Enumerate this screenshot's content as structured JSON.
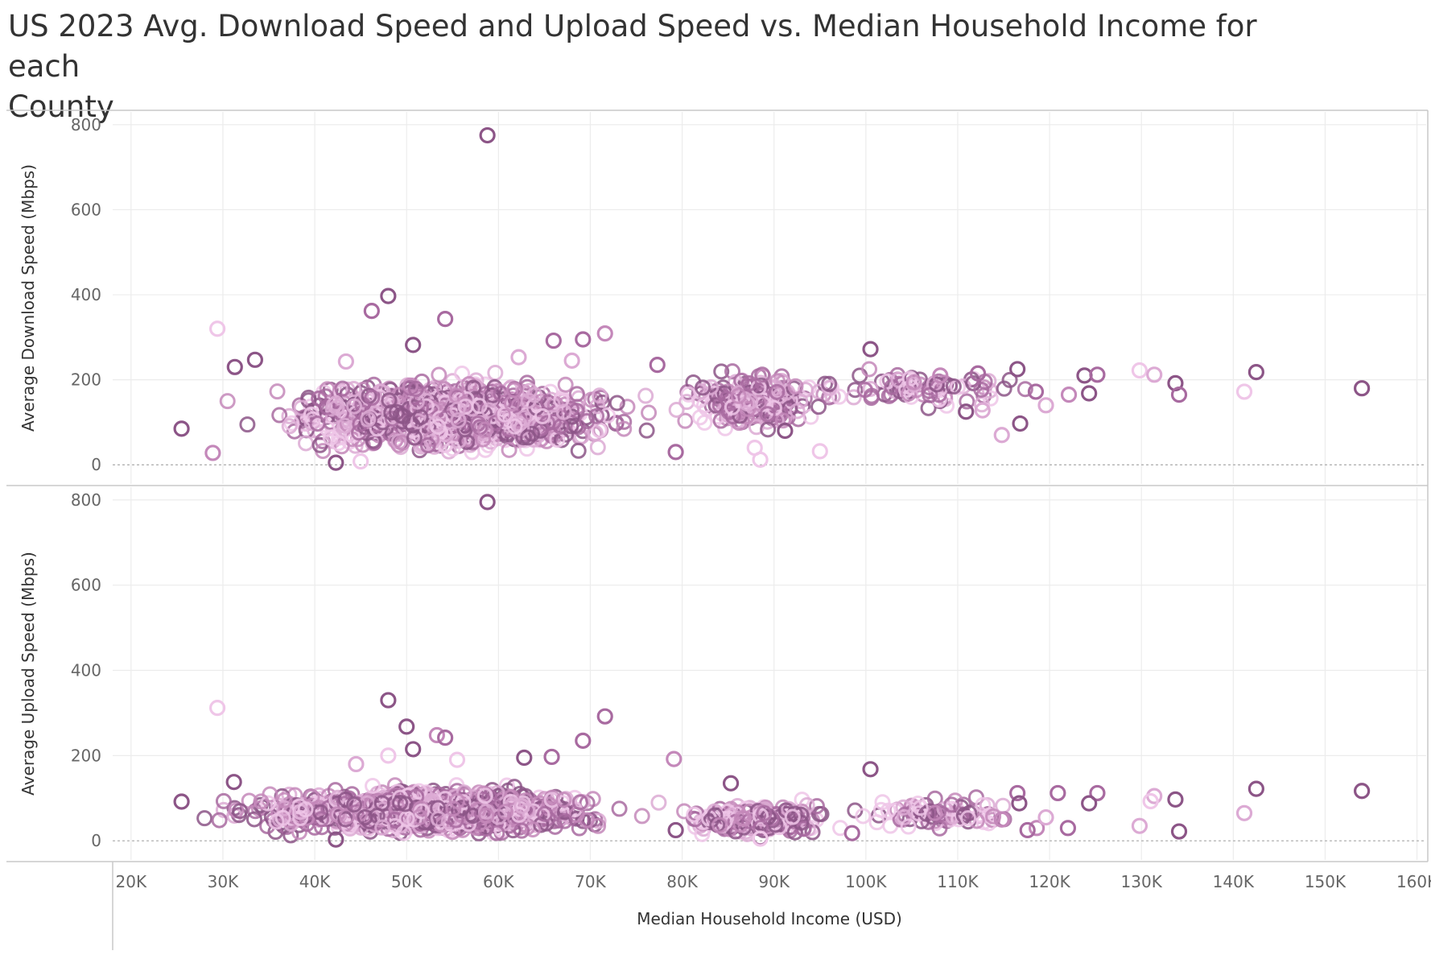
{
  "title_line1": "US 2023 Avg. Download Speed and Upload Speed vs. Median Household Income for each",
  "title_line2": "County",
  "chart_data": {
    "type": "scatter",
    "title": "US 2023 Avg. Download Speed and Upload Speed vs. Median Household Income for each County",
    "xlabel": "Median Household Income (USD)",
    "xlim": [
      18000,
      161000
    ],
    "x_ticks": [
      20000,
      30000,
      40000,
      50000,
      60000,
      70000,
      80000,
      90000,
      100000,
      110000,
      120000,
      130000,
      140000,
      150000,
      160000
    ],
    "x_tick_labels": [
      "20K",
      "30K",
      "40K",
      "50K",
      "60K",
      "70K",
      "80K",
      "90K",
      "100K",
      "110K",
      "120K",
      "130K",
      "140K",
      "150K",
      "160K"
    ],
    "marker": "hollow-circle",
    "grid": true,
    "colors": [
      "#8c5587",
      "#a86aa0",
      "#c488ba",
      "#dcaad4",
      "#efc6e8"
    ],
    "panels": [
      {
        "ylabel": "Average Download Speed (Mbps)",
        "ylim": [
          -45,
          830
        ],
        "y_ticks": [
          0,
          200,
          400,
          600,
          800
        ],
        "reference_line": 0,
        "highlight_points": [
          {
            "x": 58800,
            "y": 775,
            "c": 0
          },
          {
            "x": 48000,
            "y": 397,
            "c": 0
          },
          {
            "x": 46200,
            "y": 362,
            "c": 1
          },
          {
            "x": 54200,
            "y": 343,
            "c": 1
          },
          {
            "x": 29400,
            "y": 320,
            "c": 4
          },
          {
            "x": 71600,
            "y": 309,
            "c": 2
          },
          {
            "x": 69200,
            "y": 295,
            "c": 1
          },
          {
            "x": 66000,
            "y": 292,
            "c": 1
          },
          {
            "x": 50700,
            "y": 282,
            "c": 0
          },
          {
            "x": 100500,
            "y": 272,
            "c": 0
          },
          {
            "x": 33500,
            "y": 247,
            "c": 0
          },
          {
            "x": 31300,
            "y": 230,
            "c": 0
          },
          {
            "x": 25500,
            "y": 85,
            "c": 0
          },
          {
            "x": 116500,
            "y": 225,
            "c": 0
          },
          {
            "x": 123800,
            "y": 210,
            "c": 0
          },
          {
            "x": 125200,
            "y": 212,
            "c": 1
          },
          {
            "x": 129800,
            "y": 222,
            "c": 4
          },
          {
            "x": 131400,
            "y": 212,
            "c": 3
          },
          {
            "x": 133700,
            "y": 192,
            "c": 0
          },
          {
            "x": 134100,
            "y": 165,
            "c": 1
          },
          {
            "x": 141200,
            "y": 172,
            "c": 4
          },
          {
            "x": 142500,
            "y": 218,
            "c": 0
          },
          {
            "x": 154000,
            "y": 180,
            "c": 0
          },
          {
            "x": 116800,
            "y": 97,
            "c": 0
          },
          {
            "x": 114800,
            "y": 70,
            "c": 3
          },
          {
            "x": 119600,
            "y": 140,
            "c": 3
          },
          {
            "x": 122100,
            "y": 165,
            "c": 2
          },
          {
            "x": 124300,
            "y": 168,
            "c": 0
          },
          {
            "x": 118500,
            "y": 172,
            "c": 1
          },
          {
            "x": 112200,
            "y": 215,
            "c": 1
          },
          {
            "x": 108100,
            "y": 210,
            "c": 2
          },
          {
            "x": 110900,
            "y": 125,
            "c": 0
          },
          {
            "x": 112700,
            "y": 128,
            "c": 3
          },
          {
            "x": 95000,
            "y": 32,
            "c": 4
          },
          {
            "x": 88500,
            "y": 12,
            "c": 4
          },
          {
            "x": 91200,
            "y": 80,
            "c": 0
          },
          {
            "x": 87900,
            "y": 40,
            "c": 4
          },
          {
            "x": 79300,
            "y": 30,
            "c": 1
          },
          {
            "x": 42300,
            "y": 5,
            "c": 0
          },
          {
            "x": 45000,
            "y": 8,
            "c": 4
          },
          {
            "x": 28900,
            "y": 28,
            "c": 2
          },
          {
            "x": 62200,
            "y": 253,
            "c": 3
          },
          {
            "x": 68000,
            "y": 245,
            "c": 3
          },
          {
            "x": 77300,
            "y": 235,
            "c": 1
          },
          {
            "x": 43400,
            "y": 243,
            "c": 3
          }
        ],
        "cloud": [
          {
            "x0": 30000,
            "x1": 80000,
            "y0": 10,
            "y1": 230,
            "cx": 55000,
            "cy": 115,
            "n": 1100
          },
          {
            "x0": 78000,
            "x1": 98000,
            "y0": 40,
            "y1": 225,
            "cx": 88000,
            "cy": 150,
            "n": 230
          },
          {
            "x0": 96000,
            "x1": 125000,
            "y0": 110,
            "y1": 225,
            "cx": 105000,
            "cy": 180,
            "n": 90
          }
        ]
      },
      {
        "ylabel": "Average Upload Speed (Mbps)",
        "ylim": [
          -45,
          830
        ],
        "y_ticks": [
          0,
          200,
          400,
          600,
          800
        ],
        "reference_line": 0,
        "highlight_points": [
          {
            "x": 58800,
            "y": 795,
            "c": 0
          },
          {
            "x": 48000,
            "y": 330,
            "c": 0
          },
          {
            "x": 29400,
            "y": 312,
            "c": 4
          },
          {
            "x": 71600,
            "y": 292,
            "c": 1
          },
          {
            "x": 50000,
            "y": 268,
            "c": 0
          },
          {
            "x": 53300,
            "y": 248,
            "c": 2
          },
          {
            "x": 54200,
            "y": 242,
            "c": 1
          },
          {
            "x": 69200,
            "y": 235,
            "c": 1
          },
          {
            "x": 50700,
            "y": 215,
            "c": 0
          },
          {
            "x": 62800,
            "y": 195,
            "c": 0
          },
          {
            "x": 65800,
            "y": 197,
            "c": 1
          },
          {
            "x": 79100,
            "y": 192,
            "c": 2
          },
          {
            "x": 100500,
            "y": 168,
            "c": 0
          },
          {
            "x": 25500,
            "y": 92,
            "c": 0
          },
          {
            "x": 31200,
            "y": 138,
            "c": 0
          },
          {
            "x": 142500,
            "y": 122,
            "c": 0
          },
          {
            "x": 154000,
            "y": 117,
            "c": 0
          },
          {
            "x": 133700,
            "y": 97,
            "c": 0
          },
          {
            "x": 134100,
            "y": 22,
            "c": 0
          },
          {
            "x": 141200,
            "y": 65,
            "c": 3
          },
          {
            "x": 129800,
            "y": 35,
            "c": 3
          },
          {
            "x": 131400,
            "y": 105,
            "c": 3
          },
          {
            "x": 131000,
            "y": 93,
            "c": 4
          },
          {
            "x": 125200,
            "y": 112,
            "c": 1
          },
          {
            "x": 124300,
            "y": 88,
            "c": 0
          },
          {
            "x": 122000,
            "y": 30,
            "c": 1
          },
          {
            "x": 120900,
            "y": 112,
            "c": 1
          },
          {
            "x": 116500,
            "y": 112,
            "c": 1
          },
          {
            "x": 116700,
            "y": 88,
            "c": 0
          },
          {
            "x": 118600,
            "y": 30,
            "c": 2
          },
          {
            "x": 119600,
            "y": 55,
            "c": 3
          },
          {
            "x": 117600,
            "y": 25,
            "c": 1
          },
          {
            "x": 114800,
            "y": 50,
            "c": 2
          },
          {
            "x": 88500,
            "y": 5,
            "c": 4
          },
          {
            "x": 98500,
            "y": 18,
            "c": 1
          },
          {
            "x": 42300,
            "y": 3,
            "c": 0
          },
          {
            "x": 85300,
            "y": 135,
            "c": 0
          },
          {
            "x": 79300,
            "y": 25,
            "c": 0
          },
          {
            "x": 48000,
            "y": 200,
            "c": 4
          },
          {
            "x": 55500,
            "y": 190,
            "c": 4
          },
          {
            "x": 44500,
            "y": 180,
            "c": 3
          }
        ],
        "cloud": [
          {
            "x0": 28000,
            "x1": 82000,
            "y0": 5,
            "y1": 150,
            "cx": 52000,
            "cy": 70,
            "n": 1100
          },
          {
            "x0": 80000,
            "x1": 100000,
            "y0": 5,
            "y1": 110,
            "cx": 88000,
            "cy": 50,
            "n": 230
          },
          {
            "x0": 98000,
            "x1": 125000,
            "y0": 15,
            "y1": 110,
            "cx": 108000,
            "cy": 65,
            "n": 90
          }
        ]
      }
    ]
  }
}
